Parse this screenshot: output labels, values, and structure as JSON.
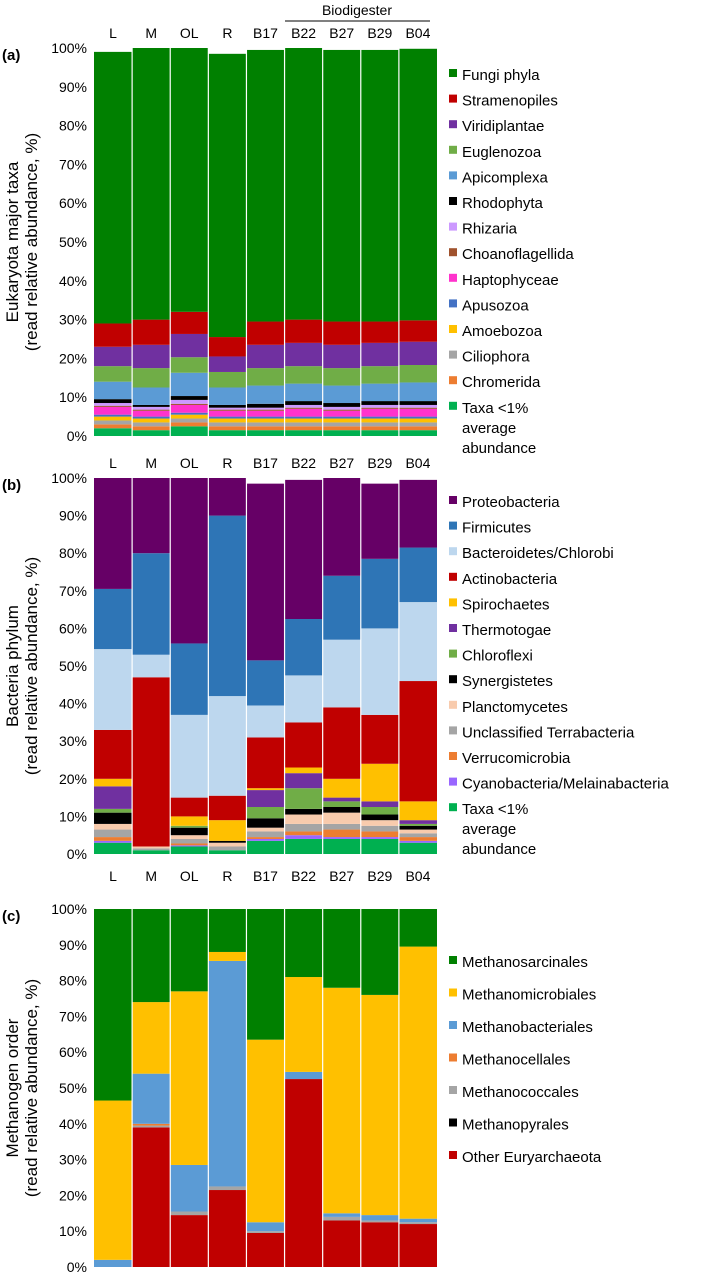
{
  "header": {
    "group_label": "Biodigester"
  },
  "chart_data": [
    {
      "type": "bar",
      "stacked": true,
      "panel": "(a)",
      "ylabel": [
        "Eukaryota major taxa",
        "(read relative abundance, %)"
      ],
      "ylim": [
        0,
        100
      ],
      "ytick_labels": [
        "0%",
        "10%",
        "20%",
        "30%",
        "40%",
        "50%",
        "60%",
        "70%",
        "80%",
        "90%",
        "100%"
      ],
      "categories": [
        "L",
        "M",
        "OL",
        "R",
        "B17",
        "B22",
        "B27",
        "B29",
        "B04"
      ],
      "legend": [
        "Fungi phyla",
        "Stramenopiles",
        "Viridiplantae",
        "Euglenozoa",
        "Apicomplexa",
        "Rhodophyta",
        "Rhizaria",
        "Choanoflagellida",
        "Haptophyceae",
        "Apusozoa",
        "Amoebozoa",
        "Ciliophora",
        "Chromerida",
        "Taxa <1%|average|abundance"
      ],
      "series": [
        {
          "name": "Taxa <1% average abundance",
          "color": "#00b050",
          "values": [
            2,
            1.5,
            2.5,
            1.5,
            1.5,
            1.5,
            1.5,
            1.5,
            1.5
          ]
        },
        {
          "name": "Chromerida",
          "color": "#ed7d31",
          "values": [
            1,
            1,
            1,
            1,
            1,
            1,
            1,
            1,
            1
          ]
        },
        {
          "name": "Ciliophora",
          "color": "#a5a5a5",
          "values": [
            1,
            1,
            1,
            1,
            1,
            1,
            1,
            1,
            1
          ]
        },
        {
          "name": "Amoebozoa",
          "color": "#ffc000",
          "values": [
            1,
            1,
            1,
            1,
            1,
            1,
            1,
            1,
            1
          ]
        },
        {
          "name": "Apusozoa",
          "color": "#4472c4",
          "values": [
            0.5,
            0.5,
            0.5,
            0.5,
            0.5,
            0.5,
            0.5,
            0.5,
            0.5
          ]
        },
        {
          "name": "Haptophyceae",
          "color": "#ff33cc",
          "values": [
            2,
            1.5,
            2,
            1.5,
            1.5,
            2,
            1.5,
            2,
            2
          ]
        },
        {
          "name": "Choanoflagellida",
          "color": "#a0522d",
          "values": [
            0.3,
            0.3,
            0.3,
            0.3,
            0.3,
            0.3,
            0.3,
            0.3,
            0.3
          ]
        },
        {
          "name": "Rhizaria",
          "color": "#cc99ff",
          "values": [
            0.7,
            0.7,
            1,
            0.5,
            0.5,
            0.7,
            0.7,
            0.7,
            0.7
          ]
        },
        {
          "name": "Rhodophyta",
          "color": "#000000",
          "values": [
            1,
            0.5,
            1,
            0.7,
            1,
            1,
            1,
            1,
            1
          ]
        },
        {
          "name": "Apicomplexa",
          "color": "#5b9bd5",
          "values": [
            4.5,
            4.5,
            6,
            4.5,
            4.7,
            4.5,
            4.5,
            4.5,
            4.8
          ]
        },
        {
          "name": "Euglenozoa",
          "color": "#70ad47",
          "values": [
            4,
            5,
            4,
            4,
            4.5,
            4.5,
            4.5,
            4.5,
            4.5
          ]
        },
        {
          "name": "Viridiplantae",
          "color": "#7030a0",
          "values": [
            5,
            6,
            6,
            4,
            6,
            6,
            6,
            6,
            6
          ]
        },
        {
          "name": "Stramenopiles",
          "color": "#c00000",
          "values": [
            6,
            6.5,
            5.7,
            5,
            6,
            6,
            6,
            5.5,
            5.5
          ]
        },
        {
          "name": "Fungi phyla",
          "color": "#008000",
          "values": [
            70,
            70,
            68,
            73,
            70,
            70,
            70,
            70,
            70
          ]
        }
      ]
    },
    {
      "type": "bar",
      "stacked": true,
      "panel": "(b)",
      "ylabel": [
        "Bacteria phylum",
        "(read relative abundance, %)"
      ],
      "ylim": [
        0,
        100
      ],
      "ytick_labels": [
        "0%",
        "10%",
        "20%",
        "30%",
        "40%",
        "50%",
        "60%",
        "70%",
        "80%",
        "90%",
        "100%"
      ],
      "categories": [
        "L",
        "M",
        "OL",
        "R",
        "B17",
        "B22",
        "B27",
        "B29",
        "B04"
      ],
      "legend": [
        "Proteobacteria",
        "Firmicutes",
        "Bacteroidetes/Chlorobi",
        "Actinobacteria",
        "Spirochaetes",
        "Thermotogae",
        "Chloroflexi",
        "Synergistetes",
        "Planctomycetes",
        "Unclassified Terrabacteria",
        "Verrucomicrobia",
        "Cyanobacteria/Melainabacteria",
        "Taxa <1%|average|abundance"
      ],
      "series": [
        {
          "name": "Taxa <1% average abundance",
          "color": "#00b050",
          "values": [
            3,
            1,
            2,
            1,
            3.5,
            4,
            4,
            4,
            3
          ]
        },
        {
          "name": "Cyanobacteria/Melainabacteria",
          "color": "#9966ff",
          "values": [
            0.5,
            0,
            0.3,
            0,
            0.5,
            1,
            0.5,
            0.5,
            0.5
          ]
        },
        {
          "name": "Verrucomicrobia",
          "color": "#ed7d31",
          "values": [
            1,
            0,
            0.5,
            0,
            0.5,
            1,
            2,
            1.5,
            1
          ]
        },
        {
          "name": "Unclassified Terrabacteria",
          "color": "#a5a5a5",
          "values": [
            2,
            0.5,
            1.2,
            1,
            1.5,
            2,
            1.5,
            1.5,
            1
          ]
        },
        {
          "name": "Planctomycetes",
          "color": "#f8cbad",
          "values": [
            1.5,
            0.5,
            1,
            1,
            1,
            2.5,
            3,
            1.5,
            1
          ]
        },
        {
          "name": "Synergistetes",
          "color": "#000000",
          "values": [
            3,
            0,
            2,
            0.5,
            2.5,
            1.5,
            1.5,
            1.5,
            1
          ]
        },
        {
          "name": "Chloroflexi",
          "color": "#70ad47",
          "values": [
            1,
            0,
            0.5,
            0,
            3,
            5.5,
            1.5,
            2,
            0.5
          ]
        },
        {
          "name": "Thermotogae",
          "color": "#7030a0",
          "values": [
            6,
            0,
            0,
            0,
            4.5,
            4,
            1,
            1.5,
            1
          ]
        },
        {
          "name": "Spirochaetes",
          "color": "#ffc000",
          "values": [
            2,
            0,
            2.5,
            5.5,
            0.5,
            1.5,
            5,
            10,
            5
          ]
        },
        {
          "name": "Actinobacteria",
          "color": "#c00000",
          "values": [
            13,
            45,
            5,
            6.5,
            13.5,
            12,
            19,
            13,
            32
          ]
        },
        {
          "name": "Bacteroidetes/Chlorobi",
          "color": "#bdd7ee",
          "values": [
            21.5,
            6,
            22,
            26.5,
            8.5,
            12.5,
            18,
            23,
            21
          ]
        },
        {
          "name": "Firmicutes",
          "color": "#2e75b6",
          "values": [
            16,
            27,
            19,
            48,
            12,
            15,
            17,
            18.5,
            14.5
          ]
        },
        {
          "name": "Proteobacteria",
          "color": "#660066",
          "values": [
            29.5,
            20,
            44,
            10,
            47,
            37,
            26,
            20,
            18
          ]
        }
      ]
    },
    {
      "type": "bar",
      "stacked": true,
      "panel": "(c)",
      "ylabel": [
        "Methanogen order",
        "(read relative abundance, %)"
      ],
      "ylim": [
        0,
        100
      ],
      "ytick_labels": [
        "0%",
        "10%",
        "20%",
        "30%",
        "40%",
        "50%",
        "60%",
        "70%",
        "80%",
        "90%",
        "100%"
      ],
      "categories": [
        "L",
        "M",
        "OL",
        "R",
        "B17",
        "B22",
        "B27",
        "B29",
        "B04"
      ],
      "legend": [
        "Methanosarcinales",
        "Methanomicrobiales",
        "Methanobacteriales",
        "Methanocellales",
        "Methanococcales",
        "Methanopyrales",
        "Other Euryarchaeota"
      ],
      "series": [
        {
          "name": "Other Euryarchaeota",
          "color": "#c00000",
          "values": [
            0,
            39,
            14.5,
            21.5,
            9.5,
            52.5,
            13,
            12.5,
            12
          ]
        },
        {
          "name": "Methanopyrales",
          "color": "#000000",
          "values": [
            0,
            0,
            0,
            0,
            0,
            0,
            0,
            0,
            0
          ]
        },
        {
          "name": "Methanococcales",
          "color": "#a5a5a5",
          "values": [
            0,
            0.5,
            1,
            1,
            0.5,
            0,
            1,
            0.5,
            0.5
          ]
        },
        {
          "name": "Methanocellales",
          "color": "#ed7d31",
          "values": [
            0,
            0.5,
            0,
            0,
            0,
            0,
            0,
            0,
            0
          ]
        },
        {
          "name": "Methanobacteriales",
          "color": "#5b9bd5",
          "values": [
            2,
            14,
            13,
            63,
            2.5,
            2,
            1,
            1.5,
            1
          ]
        },
        {
          "name": "Methanomicrobiales",
          "color": "#ffc000",
          "values": [
            44.5,
            20,
            48.5,
            2.5,
            51,
            26.5,
            63,
            61.5,
            76
          ]
        },
        {
          "name": "Methanosarcinales",
          "color": "#008000",
          "values": [
            53.5,
            26,
            23,
            12,
            36.5,
            19,
            22,
            24,
            10.5
          ]
        }
      ]
    }
  ]
}
